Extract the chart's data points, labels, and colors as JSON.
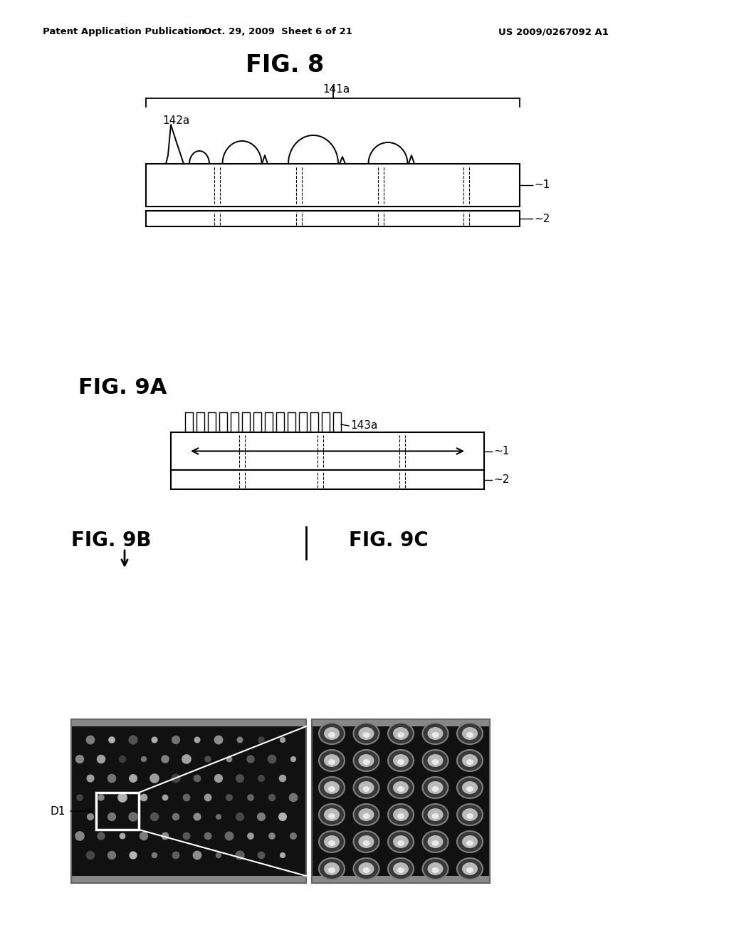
{
  "bg_color": "#ffffff",
  "text_color": "#000000",
  "header_left": "Patent Application Publication",
  "header_center": "Oct. 29, 2009  Sheet 6 of 21",
  "header_right": "US 2009/0267092 A1",
  "fig8_title": "FIG. 8",
  "fig9a_title": "FIG. 9A",
  "fig9b_title": "FIG. 9B",
  "fig9c_title": "FIG. 9C",
  "label_141a": "141a",
  "label_142a": "142a",
  "label_143a": "143a",
  "label_1_fig8": "1",
  "label_2_fig8": "2",
  "label_1_fig9a": "1",
  "label_2_fig9a": "2",
  "label_D1": "D1"
}
